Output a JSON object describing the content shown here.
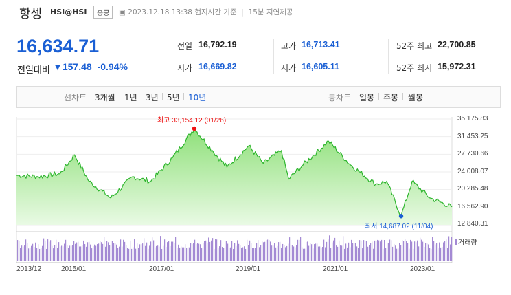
{
  "header": {
    "title": "항셍",
    "code": "HSI@HSI",
    "region_badge": "홍콩",
    "timestamp": "2023.12.18 13:38 현지시간 기준",
    "delay": "15분 지연제공"
  },
  "quote": {
    "price": "16,634.71",
    "change_label": "전일대비",
    "change": "157.48",
    "change_pct": "-0.94%",
    "direction": "down",
    "stats": {
      "prev_label": "전일",
      "prev": "16,792.19",
      "open_label": "시가",
      "open": "16,669.82",
      "high_label": "고가",
      "high": "16,713.41",
      "low_label": "저가",
      "low": "16,605.11",
      "wk52_high_label": "52주 최고",
      "wk52_high": "22,700.85",
      "wk52_low_label": "52주 최저",
      "wk52_low": "15,972.31"
    }
  },
  "chart_tabs": {
    "line_label": "선차트",
    "periods": [
      "3개월",
      "1년",
      "3년",
      "5년",
      "10년"
    ],
    "active_period": "10년",
    "candle_label": "봉차트",
    "candle_periods": [
      "일봉",
      "주봉",
      "월봉"
    ]
  },
  "chart_data": {
    "type": "area",
    "y_ticks": [
      "35,175.83",
      "31,453.25",
      "27,730.66",
      "24,008.07",
      "20,285.48",
      "16,562.90",
      "12,840.31"
    ],
    "x_ticks": [
      "2013/12",
      "2015/01",
      "2017/01",
      "2019/01",
      "2021/01",
      "2023/01"
    ],
    "ylim": [
      12840.31,
      35175.83
    ],
    "max_annotation": {
      "label": "최고",
      "value": "33,154.12",
      "date": "(01/26)"
    },
    "min_annotation": {
      "label": "최저",
      "value": "14,687.02",
      "date": "(11/04)"
    },
    "volume_label": "거래량",
    "series": [
      {
        "x": [
          "2013-12",
          "2014-06",
          "2014-12",
          "2015-04",
          "2015-08",
          "2016-02",
          "2016-08",
          "2017-01",
          "2017-07",
          "2018-01",
          "2018-06",
          "2018-10",
          "2019-04",
          "2019-08",
          "2020-01",
          "2020-03",
          "2020-07",
          "2021-02",
          "2021-08",
          "2022-03",
          "2022-06",
          "2022-10",
          "2023-01",
          "2023-06",
          "2023-12"
        ],
        "values": [
          23300,
          23000,
          23600,
          27600,
          22000,
          18500,
          23000,
          22000,
          27000,
          33150,
          28500,
          25000,
          29500,
          25800,
          28500,
          22500,
          25500,
          30500,
          25500,
          21400,
          22000,
          14690,
          22000,
          18500,
          16630
        ]
      }
    ],
    "colors": {
      "line": "#2db52d",
      "fill_top": "#8fe07a",
      "fill_bottom": "#e9fae4",
      "volume": "#a48ad4",
      "max": "#e11",
      "min": "#1a5fd4"
    }
  }
}
